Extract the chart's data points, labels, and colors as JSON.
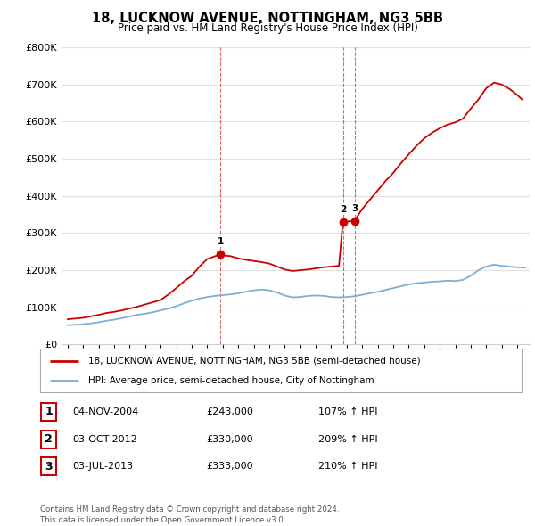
{
  "title": "18, LUCKNOW AVENUE, NOTTINGHAM, NG3 5BB",
  "subtitle": "Price paid vs. HM Land Registry's House Price Index (HPI)",
  "ylim": [
    0,
    800000
  ],
  "yticks": [
    0,
    100000,
    200000,
    300000,
    400000,
    500000,
    600000,
    700000,
    800000
  ],
  "ytick_labels": [
    "£0",
    "£100K",
    "£200K",
    "£300K",
    "£400K",
    "£500K",
    "£600K",
    "£700K",
    "£800K"
  ],
  "xlim_start": 1994.6,
  "xlim_end": 2024.8,
  "transactions": [
    {
      "year": 2004.84,
      "price": 243000,
      "label": "1"
    },
    {
      "year": 2012.75,
      "price": 330000,
      "label": "2"
    },
    {
      "year": 2013.5,
      "price": 333000,
      "label": "3"
    }
  ],
  "vline_years": [
    2004.84,
    2012.75,
    2013.5
  ],
  "red_line_color": "#cc0000",
  "blue_line_color": "#7bafd4",
  "vline_color": "#cc0000",
  "grid_color": "#e0e0e0",
  "background_color": "#ffffff",
  "legend_items": [
    "18, LUCKNOW AVENUE, NOTTINGHAM, NG3 5BB (semi-detached house)",
    "HPI: Average price, semi-detached house, City of Nottingham"
  ],
  "table_rows": [
    {
      "num": "1",
      "date": "04-NOV-2004",
      "price": "£243,000",
      "hpi": "107% ↑ HPI"
    },
    {
      "num": "2",
      "date": "03-OCT-2012",
      "price": "£330,000",
      "hpi": "209% ↑ HPI"
    },
    {
      "num": "3",
      "date": "03-JUL-2013",
      "price": "£333,000",
      "hpi": "210% ↑ HPI"
    }
  ],
  "footer": "Contains HM Land Registry data © Crown copyright and database right 2024.\nThis data is licensed under the Open Government Licence v3.0.",
  "hpi_years": [
    1995.0,
    1995.5,
    1996.0,
    1996.5,
    1997.0,
    1997.5,
    1998.0,
    1998.5,
    1999.0,
    1999.5,
    2000.0,
    2000.5,
    2001.0,
    2001.5,
    2002.0,
    2002.5,
    2003.0,
    2003.5,
    2004.0,
    2004.5,
    2005.0,
    2005.5,
    2006.0,
    2006.5,
    2007.0,
    2007.5,
    2008.0,
    2008.5,
    2009.0,
    2009.5,
    2010.0,
    2010.5,
    2011.0,
    2011.5,
    2012.0,
    2012.5,
    2013.0,
    2013.5,
    2014.0,
    2014.5,
    2015.0,
    2015.5,
    2016.0,
    2016.5,
    2017.0,
    2017.5,
    2018.0,
    2018.5,
    2019.0,
    2019.5,
    2020.0,
    2020.5,
    2021.0,
    2021.5,
    2022.0,
    2022.5,
    2023.0,
    2023.5,
    2024.0,
    2024.5
  ],
  "hpi_values": [
    52000,
    53000,
    55000,
    57000,
    60000,
    64000,
    67000,
    71000,
    76000,
    80000,
    83000,
    87000,
    92000,
    97000,
    103000,
    111000,
    118000,
    124000,
    128000,
    131000,
    133000,
    135000,
    138000,
    142000,
    146000,
    148000,
    146000,
    140000,
    132000,
    127000,
    128000,
    131000,
    132000,
    131000,
    128000,
    127000,
    128000,
    130000,
    134000,
    138000,
    142000,
    147000,
    152000,
    157000,
    162000,
    165000,
    167000,
    169000,
    170000,
    172000,
    171000,
    174000,
    185000,
    200000,
    210000,
    215000,
    212000,
    210000,
    208000,
    207000
  ],
  "red_years": [
    1995.0,
    1995.5,
    1996.0,
    1996.5,
    1997.0,
    1997.5,
    1998.0,
    1998.5,
    1999.0,
    1999.5,
    2000.0,
    2000.5,
    2001.0,
    2001.5,
    2002.0,
    2002.5,
    2003.0,
    2003.5,
    2004.0,
    2004.84,
    2005.0,
    2005.5,
    2006.0,
    2006.5,
    2007.0,
    2007.5,
    2008.0,
    2008.5,
    2009.0,
    2009.5,
    2010.0,
    2010.5,
    2011.0,
    2011.5,
    2012.0,
    2012.5,
    2012.75,
    2013.5,
    2014.0,
    2014.5,
    2015.0,
    2015.5,
    2016.0,
    2016.5,
    2017.0,
    2017.5,
    2018.0,
    2018.5,
    2019.0,
    2019.5,
    2020.0,
    2020.5,
    2021.0,
    2021.5,
    2022.0,
    2022.5,
    2023.0,
    2023.5,
    2024.0,
    2024.3
  ],
  "red_values": [
    68000,
    70000,
    72000,
    76000,
    80000,
    85000,
    88000,
    92000,
    97000,
    102000,
    108000,
    114000,
    120000,
    135000,
    152000,
    170000,
    185000,
    210000,
    230000,
    243000,
    240000,
    238000,
    232000,
    228000,
    225000,
    222000,
    218000,
    210000,
    202000,
    198000,
    200000,
    202000,
    205000,
    208000,
    210000,
    212000,
    330000,
    333000,
    365000,
    390000,
    415000,
    440000,
    462000,
    488000,
    512000,
    535000,
    555000,
    570000,
    582000,
    592000,
    598000,
    608000,
    635000,
    660000,
    690000,
    705000,
    700000,
    688000,
    672000,
    660000
  ]
}
